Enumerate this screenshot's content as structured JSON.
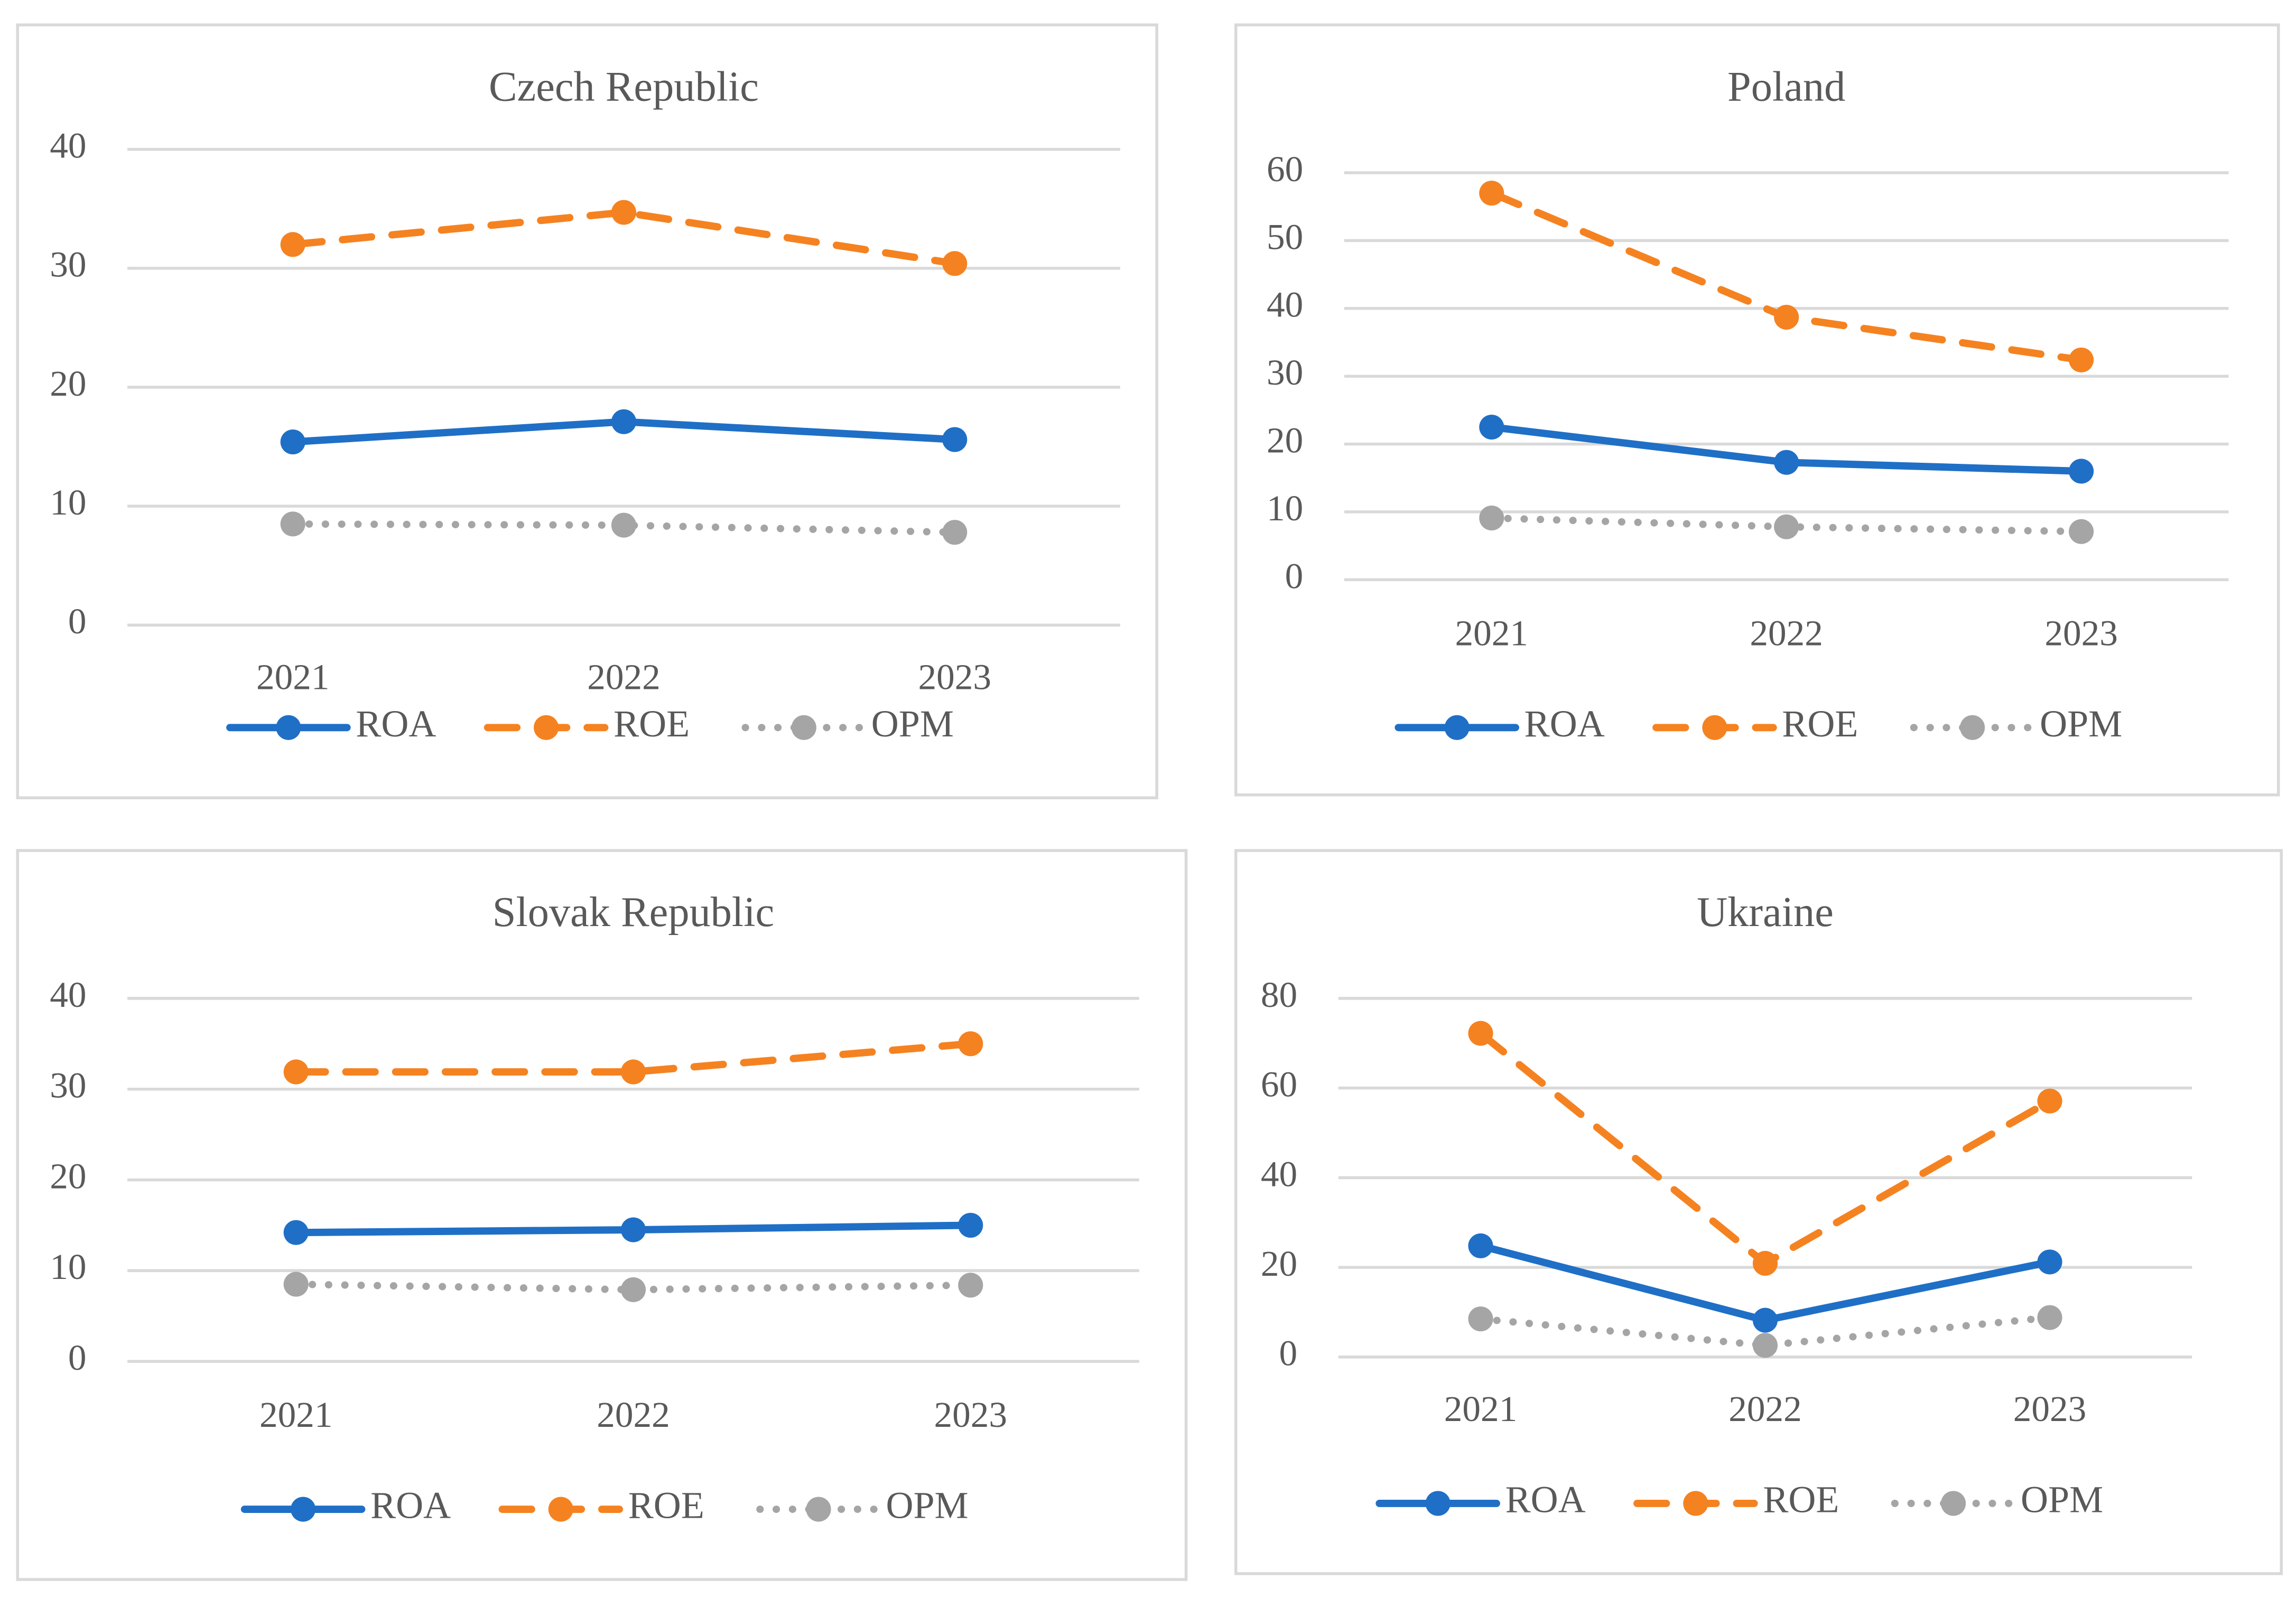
{
  "chart_data": [
    {
      "type": "line",
      "title": "Czech Republic",
      "categories": [
        "2021",
        "2022",
        "2023"
      ],
      "series": [
        {
          "name": "ROA",
          "color": "#1f6fc6",
          "values": [
            15.4,
            17.1,
            15.6
          ]
        },
        {
          "name": "ROE",
          "color": "#f58220",
          "values": [
            32.0,
            34.7,
            30.4
          ]
        },
        {
          "name": "OPM",
          "color": "#a5a5a5",
          "values": [
            8.5,
            8.4,
            7.8
          ]
        }
      ],
      "ylim": [
        0,
        40
      ],
      "yticks": [
        0,
        10,
        20,
        30,
        40
      ],
      "grid": true
    },
    {
      "type": "line",
      "title": "Poland",
      "categories": [
        "2021",
        "2022",
        "2023"
      ],
      "series": [
        {
          "name": "ROA",
          "color": "#1f6fc6",
          "values": [
            22.5,
            17.3,
            16.0
          ]
        },
        {
          "name": "ROE",
          "color": "#f58220",
          "values": [
            57.0,
            38.7,
            32.4
          ]
        },
        {
          "name": "OPM",
          "color": "#a5a5a5",
          "values": [
            9.1,
            7.8,
            7.1
          ]
        }
      ],
      "ylim": [
        0,
        60
      ],
      "yticks": [
        0,
        10,
        20,
        30,
        40,
        50,
        60
      ],
      "grid": true
    },
    {
      "type": "line",
      "title": "Slovak Republic",
      "categories": [
        "2021",
        "2022",
        "2023"
      ],
      "series": [
        {
          "name": "ROA",
          "color": "#1f6fc6",
          "values": [
            14.2,
            14.5,
            15.0
          ]
        },
        {
          "name": "ROE",
          "color": "#f58220",
          "values": [
            31.9,
            31.9,
            35.0
          ]
        },
        {
          "name": "OPM",
          "color": "#a5a5a5",
          "values": [
            8.5,
            7.9,
            8.4
          ]
        }
      ],
      "ylim": [
        0,
        40
      ],
      "yticks": [
        0,
        10,
        20,
        30,
        40
      ],
      "grid": true
    },
    {
      "type": "line",
      "title": "Ukraine",
      "categories": [
        "2021",
        "2022",
        "2023"
      ],
      "series": [
        {
          "name": "ROA",
          "color": "#1f6fc6",
          "values": [
            24.8,
            8.2,
            21.2
          ]
        },
        {
          "name": "ROE",
          "color": "#f58220",
          "values": [
            72.2,
            20.9,
            57.1
          ]
        },
        {
          "name": "OPM",
          "color": "#a5a5a5",
          "values": [
            8.5,
            2.6,
            8.8
          ]
        }
      ],
      "ylim": [
        0,
        80
      ],
      "yticks": [
        0,
        20,
        40,
        60,
        80
      ],
      "grid": true
    }
  ]
}
